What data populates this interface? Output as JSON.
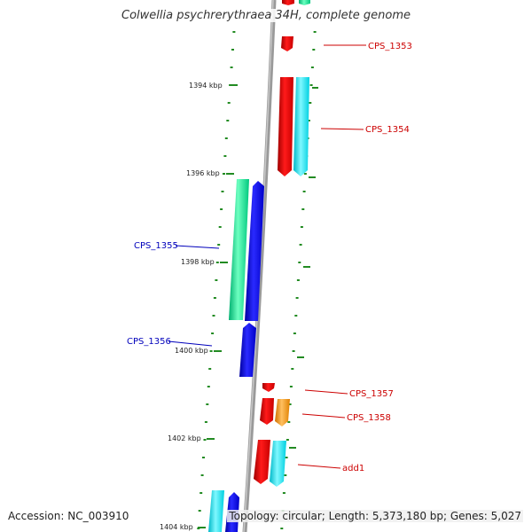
{
  "title": "Colwellia psychrerythraea 34H, complete genome",
  "footer": {
    "accession": "Accession: NC_003910",
    "topology": "Topology: circular; Length: 5,373,180 bp; Genes: 5,027"
  },
  "colors": {
    "backbone": "#999999",
    "tick": "#228b22",
    "label_forward": "#cc0000",
    "label_reverse": "#0000bb",
    "gene_red": "#ee0000",
    "gene_cyan": "#00e5ee",
    "gene_blue": "#0000ee",
    "gene_green": "#00e08a",
    "gene_orange": "#ff9900"
  },
  "scale": {
    "labels": [
      {
        "text": "1394 kbp",
        "kbp": 1394
      },
      {
        "text": "1396 kbp",
        "kbp": 1396
      },
      {
        "text": "1398 kbp",
        "kbp": 1398
      },
      {
        "text": "1400 kbp",
        "kbp": 1400
      },
      {
        "text": "1402 kbp",
        "kbp": 1402
      },
      {
        "text": "1404 kbp",
        "kbp": 1404
      }
    ]
  },
  "gene_labels": [
    {
      "text": "CPS_1353",
      "strand": "forward"
    },
    {
      "text": "CPS_1354",
      "strand": "forward"
    },
    {
      "text": "CPS_1355",
      "strand": "reverse"
    },
    {
      "text": "CPS_1356",
      "strand": "reverse"
    },
    {
      "text": "CPS_1357",
      "strand": "forward"
    },
    {
      "text": "CPS_1358",
      "strand": "forward"
    },
    {
      "text": "add1",
      "strand": "forward"
    }
  ],
  "genes": [
    {
      "kind": "top-red",
      "color": "gene_red"
    },
    {
      "kind": "top-green",
      "color": "gene_green"
    },
    {
      "kind": "CPS_1353",
      "color": "gene_red"
    },
    {
      "kind": "CPS_1354-cds",
      "color": "gene_red"
    },
    {
      "kind": "CPS_1354-cog",
      "color": "gene_cyan"
    },
    {
      "kind": "CPS_1355-cog",
      "color": "gene_green"
    },
    {
      "kind": "CPS_1355-cds",
      "color": "gene_blue"
    },
    {
      "kind": "CPS_1356",
      "color": "gene_blue"
    },
    {
      "kind": "CPS_1357",
      "color": "gene_red"
    },
    {
      "kind": "CPS_1358-cds",
      "color": "gene_red"
    },
    {
      "kind": "CPS_1358-cog",
      "color": "gene_orange"
    },
    {
      "kind": "add1-cds",
      "color": "gene_red"
    },
    {
      "kind": "add1-cog",
      "color": "gene_cyan"
    },
    {
      "kind": "bottom-cyan",
      "color": "gene_cyan"
    },
    {
      "kind": "bottom-blue",
      "color": "gene_blue"
    }
  ]
}
